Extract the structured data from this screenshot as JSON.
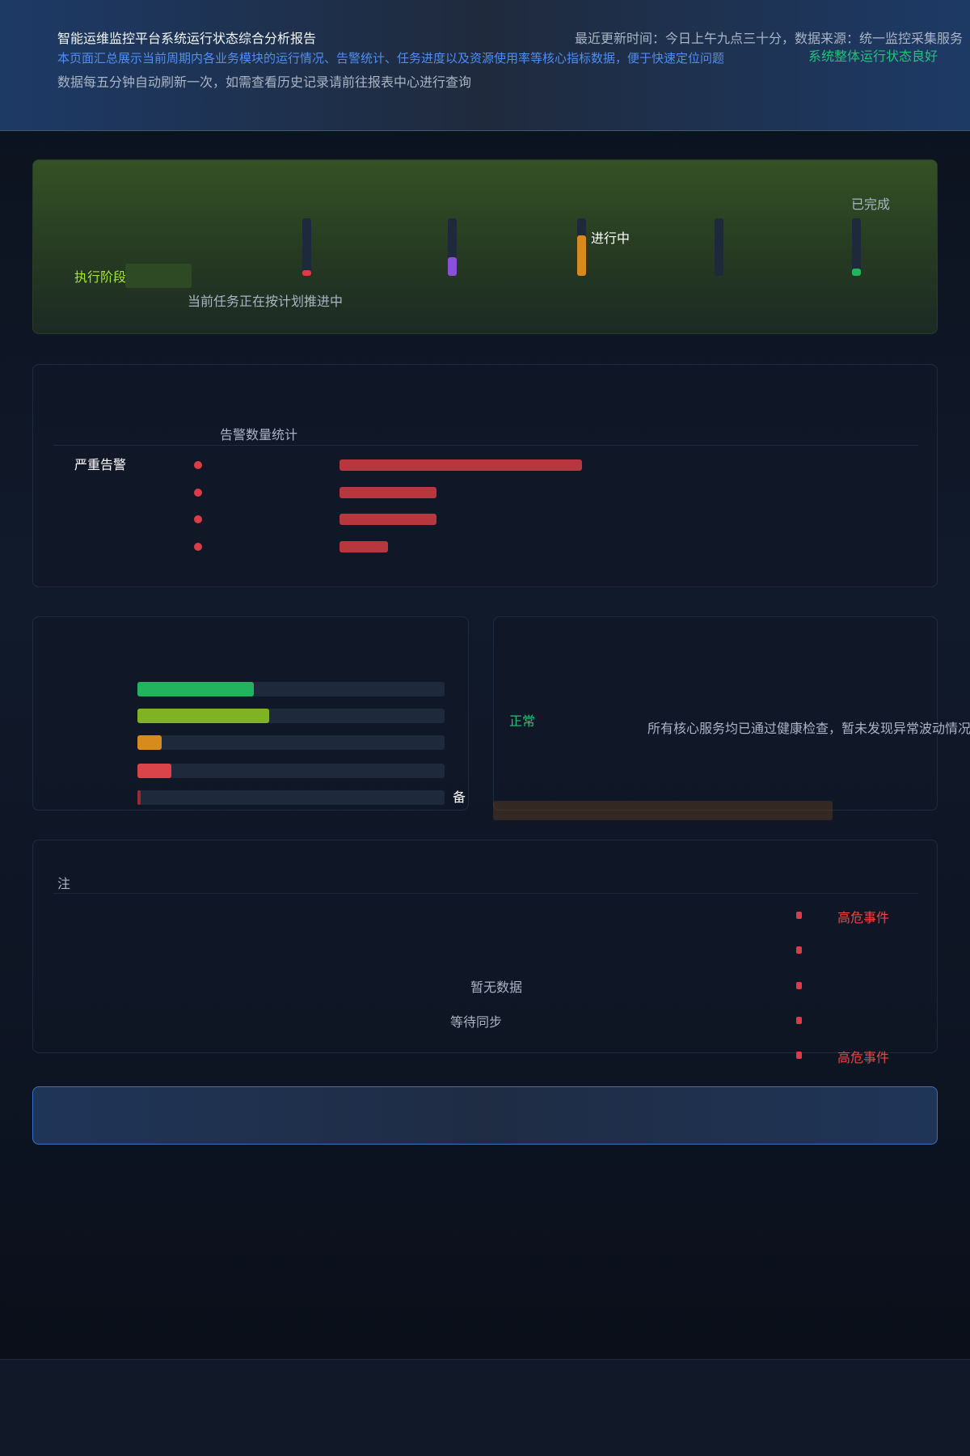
{
  "header": {
    "title": "智能运维监控平台系统运行状态综合分析报告",
    "subtitle": "本页面汇总展示当前周期内各业务模块的运行情况、告警统计、任务进度以及资源使用率等核心指标数据，便于快速定位问题",
    "description": "数据每五分钟自动刷新一次，如需查看历史记录请前往报表中心进行查询",
    "meta": "最近更新时间：今日上午九点三十分，数据来源：统一监控采集服务",
    "status": "系统整体运行状态良好"
  },
  "progress": {
    "label": "执行阶段",
    "note": "当前任务正在按计划推进中",
    "current": "进行中",
    "done": "已完成",
    "stages": [
      {
        "value": 10,
        "color": "#dc3c45"
      },
      {
        "value": 32,
        "color": "#8b4fd9"
      },
      {
        "value": 70,
        "color": "#d98a1c"
      },
      {
        "value": 0,
        "color": "#3b4a63"
      },
      {
        "value": 13,
        "color": "#22b35e"
      }
    ]
  },
  "alerts": {
    "header": "告警数量统计",
    "label": "严重告警",
    "values": [
      5,
      2,
      2,
      1
    ]
  },
  "usage": {
    "values": [
      38,
      43,
      8,
      11,
      1
    ],
    "colors": [
      "#22b35e",
      "#7fb324",
      "#d98a1c",
      "#d9434a",
      "#9b2b33"
    ],
    "max": 100,
    "marker": "备"
  },
  "summary": {
    "tag": "正常",
    "text": "所有核心服务均已通过健康检查，暂未发现异常波动情况"
  },
  "events": {
    "icon": "注",
    "center1": "暂无数据",
    "center2": "等待同步",
    "first": "高危事件",
    "last": "高危事件",
    "count": 5
  }
}
